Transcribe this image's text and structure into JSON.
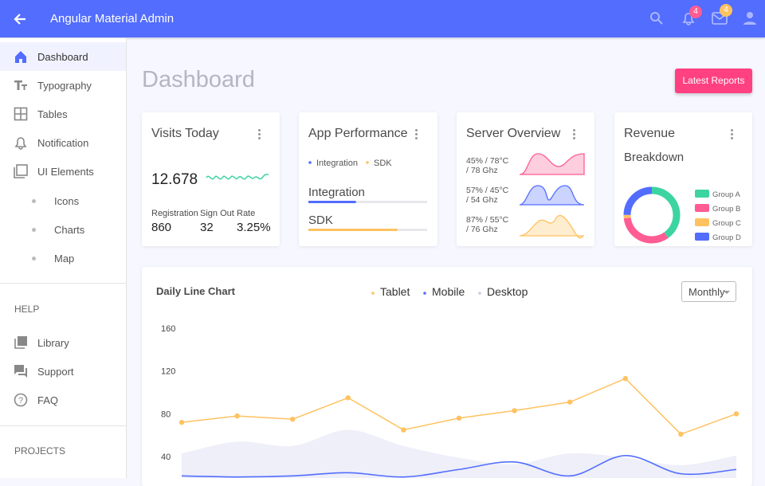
{
  "header": {
    "title": "Angular Material Admin",
    "notifications": 4,
    "messages": 4
  },
  "sidebar": {
    "items": [
      "Dashboard",
      "Typography",
      "Tables",
      "Notification",
      "UI Elements"
    ],
    "sub_items": [
      "Icons",
      "Charts",
      "Map"
    ],
    "help_title": "HELP",
    "help_items": [
      "Library",
      "Support",
      "FAQ"
    ],
    "projects_title": "PROJECTS"
  },
  "page": {
    "title": "Dashboard",
    "button": "Latest Reports"
  },
  "visits": {
    "title": "Visits Today",
    "value": "12.678",
    "stats": [
      {
        "label": "Registration",
        "value": "860"
      },
      {
        "label": "Sign Out",
        "value": "32"
      },
      {
        "label": "Rate",
        "value": "3.25%"
      }
    ]
  },
  "performance": {
    "title": "App Performance",
    "bars": [
      {
        "name": "Integration",
        "color": "#536dfe",
        "value": 40
      },
      {
        "name": "SDK",
        "color": "#ffc260",
        "value": 75
      }
    ]
  },
  "server": {
    "title": "Server Overview",
    "rows": [
      {
        "line1": "45% / 78°C",
        "line2": "/ 78 Ghz",
        "color": "#ff5c93"
      },
      {
        "line1": "57% / 45°C",
        "line2": "/ 54 Ghz",
        "color": "#536dfe"
      },
      {
        "line1": "87% / 55°C",
        "line2": "/ 76 Ghz",
        "color": "#ffc260"
      }
    ]
  },
  "revenue": {
    "title": "Revenue",
    "subtitle": "Breakdown",
    "groups": [
      {
        "name": "Group A",
        "color": "#3cd4a0",
        "value": 40
      },
      {
        "name": "Group B",
        "color": "#ff5c93",
        "value": 33
      },
      {
        "name": "Group C",
        "color": "#ffc260",
        "value": 2
      },
      {
        "name": "Group D",
        "color": "#536dfe",
        "value": 25
      }
    ]
  },
  "line_chart": {
    "type": "line",
    "title": "Daily Line Chart",
    "select": "Monthly",
    "ylim": [
      20,
      160
    ],
    "yticks": [
      40,
      80,
      120,
      160
    ],
    "series": [
      {
        "name": "Tablet",
        "color": "#ffc260",
        "values": [
          72,
          78,
          75,
          95,
          65,
          76,
          83,
          91,
          113,
          61,
          80
        ]
      },
      {
        "name": "Mobile",
        "color": "#536dfe",
        "values": [
          22,
          21,
          22,
          25,
          21,
          28,
          35,
          22,
          41,
          24,
          28
        ]
      },
      {
        "name": "Desktop",
        "color": "#c8cbe8",
        "values": [
          43,
          54,
          50,
          65,
          50,
          39,
          33,
          43,
          39,
          32,
          41
        ]
      }
    ]
  }
}
